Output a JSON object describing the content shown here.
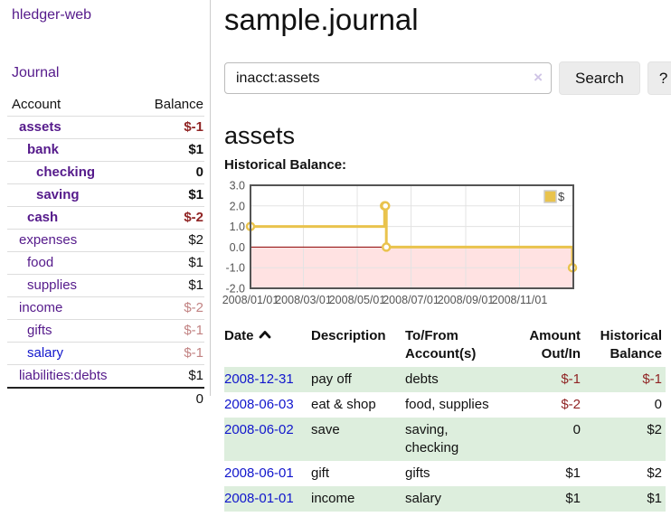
{
  "colors": {
    "link_visited": "#551a8b",
    "link_unvisited": "#1116cc",
    "neg_strong": "#902424",
    "neg_dim": "#c28383",
    "stripe_green": "#ddeedd",
    "chart_gold": "#e9c34d"
  },
  "app": {
    "title": "hledger-web"
  },
  "sidebar": {
    "nav_journal": "Journal",
    "table": {
      "headers": {
        "account": "Account",
        "balance": "Balance"
      },
      "accounts": [
        {
          "name": "assets",
          "level": 1,
          "bold": true,
          "balance": "$-1",
          "neg": "strong",
          "link": "visited"
        },
        {
          "name": "bank",
          "level": 2,
          "bold": true,
          "balance": "$1",
          "neg": "none",
          "link": "visited"
        },
        {
          "name": "checking",
          "level": 3,
          "bold": true,
          "balance": "0",
          "neg": "none",
          "link": "visited"
        },
        {
          "name": "saving",
          "level": 3,
          "bold": true,
          "balance": "$1",
          "neg": "none",
          "link": "visited"
        },
        {
          "name": "cash",
          "level": 2,
          "bold": true,
          "balance": "$-2",
          "neg": "strong",
          "link": "visited"
        },
        {
          "name": "expenses",
          "level": 1,
          "bold": false,
          "balance": "$2",
          "neg": "none",
          "link": "visited"
        },
        {
          "name": "food",
          "level": 2,
          "bold": false,
          "balance": "$1",
          "neg": "none",
          "link": "visited"
        },
        {
          "name": "supplies",
          "level": 2,
          "bold": false,
          "balance": "$1",
          "neg": "none",
          "link": "visited"
        },
        {
          "name": "income",
          "level": 1,
          "bold": false,
          "balance": "$-2",
          "neg": "dim",
          "link": "visited"
        },
        {
          "name": "gifts",
          "level": 2,
          "bold": false,
          "balance": "$-1",
          "neg": "dim",
          "link": "visited"
        },
        {
          "name": "salary",
          "level": 2,
          "bold": false,
          "balance": "$-1",
          "neg": "dim",
          "link": "unvisited"
        },
        {
          "name": "liabilities:debts",
          "level": 1,
          "bold": false,
          "balance": "$1",
          "neg": "none",
          "link": "visited"
        }
      ],
      "total": "0"
    }
  },
  "main": {
    "title": "sample.journal",
    "search": {
      "value": "inacct:assets",
      "clear_icon": "×",
      "button": "Search",
      "help_button": "?"
    },
    "account_heading": "assets",
    "chart_label": "Historical Balance:"
  },
  "chart_data": {
    "type": "line",
    "title": "Historical Balance",
    "series": [
      {
        "name": "$",
        "color": "#e9c34d",
        "points": [
          {
            "date": "2008-01-01",
            "day": 0,
            "value": 1
          },
          {
            "date": "2008-06-01",
            "day": 152,
            "value": 2
          },
          {
            "date": "2008-06-02",
            "day": 153,
            "value": 2
          },
          {
            "date": "2008-06-03",
            "day": 154,
            "value": 0
          },
          {
            "date": "2008-12-31",
            "day": 365,
            "value": -1
          }
        ]
      }
    ],
    "x_axis": {
      "day_min": 0,
      "day_max": 366,
      "ticks": [
        {
          "label": "2008/01/01",
          "day": 0
        },
        {
          "label": "2008/03/01",
          "day": 60
        },
        {
          "label": "2008/05/01",
          "day": 121
        },
        {
          "label": "2008/07/01",
          "day": 182
        },
        {
          "label": "2008/09/01",
          "day": 244
        },
        {
          "label": "2008/11/01",
          "day": 305
        }
      ]
    },
    "y_axis": {
      "min": -2,
      "max": 3,
      "ticks": [
        {
          "label": "3.0",
          "value": 3
        },
        {
          "label": "2.0",
          "value": 2
        },
        {
          "label": "1.0",
          "value": 1
        },
        {
          "label": "0.0",
          "value": 0
        },
        {
          "label": "-1.0",
          "value": -1
        },
        {
          "label": "-2.0",
          "value": -2
        }
      ]
    },
    "legend": {
      "label": "$",
      "position": "top-right"
    },
    "style": {
      "steps": true,
      "negative_region_color": "#ffe2e2",
      "zero_line_color": "#8b0000",
      "grid_color": "#e3e3e3",
      "border_color": "#545454"
    }
  },
  "register": {
    "headers": {
      "date": "Date",
      "description": "Description",
      "tofrom": [
        "To/From",
        "Account(s)"
      ],
      "amount": [
        "Amount",
        "Out/In"
      ],
      "balance": [
        "Historical",
        "Balance"
      ]
    },
    "rows": [
      {
        "date": "2008-12-31",
        "description": "pay off",
        "accounts": [
          "debts"
        ],
        "amount": "$-1",
        "balance": "$-1",
        "amount_neg": true,
        "balance_neg": true
      },
      {
        "date": "2008-06-03",
        "description": "eat & shop",
        "accounts": [
          "food, supplies"
        ],
        "amount": "$-2",
        "balance": "0",
        "amount_neg": true,
        "balance_neg": false
      },
      {
        "date": "2008-06-02",
        "description": "save",
        "accounts": [
          "saving,",
          "checking"
        ],
        "amount": "0",
        "balance": "$2",
        "amount_neg": false,
        "balance_neg": false
      },
      {
        "date": "2008-06-01",
        "description": "gift",
        "accounts": [
          "gifts"
        ],
        "amount": "$1",
        "balance": "$2",
        "amount_neg": false,
        "balance_neg": false
      },
      {
        "date": "2008-01-01",
        "description": "income",
        "accounts": [
          "salary"
        ],
        "amount": "$1",
        "balance": "$1",
        "amount_neg": false,
        "balance_neg": false
      }
    ]
  }
}
